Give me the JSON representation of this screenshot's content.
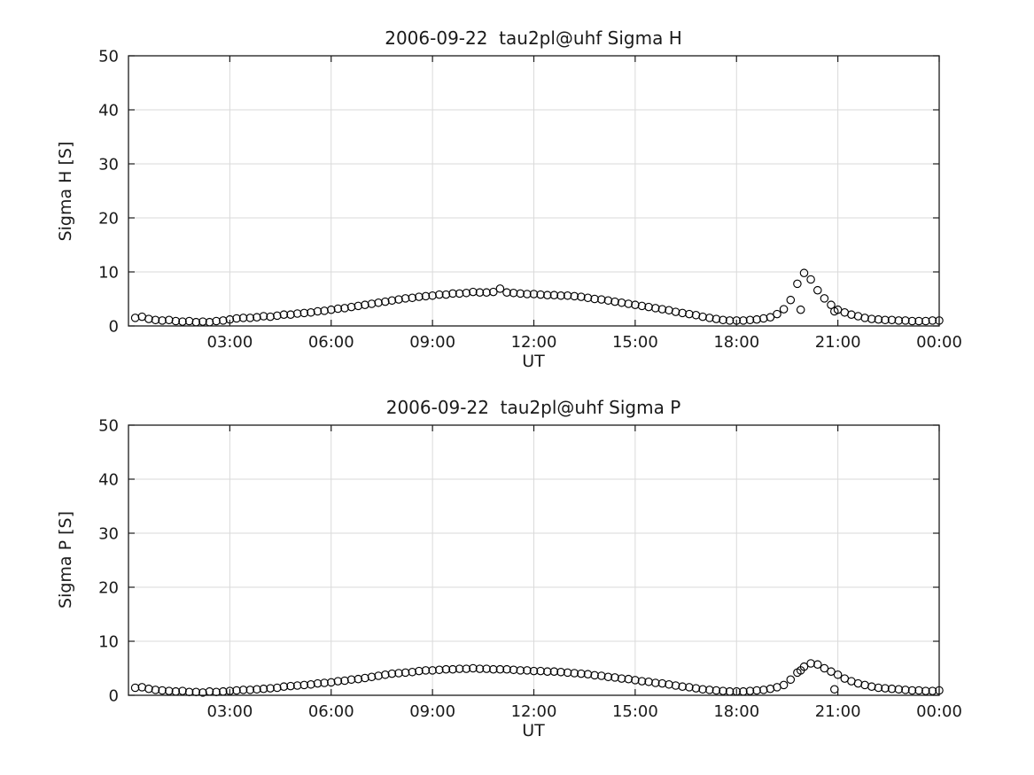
{
  "figure": {
    "background": "#ffffff",
    "marker_color": "#000000",
    "grid_color": "#dadada"
  },
  "chart_data": {
    "type": "scatter",
    "marker": "open-circle",
    "grid": true,
    "x_label": "UT",
    "x_lim": [
      0,
      24
    ],
    "y_lim": [
      0,
      50
    ],
    "x_ticks": [
      3,
      6,
      9,
      12,
      15,
      18,
      21,
      24
    ],
    "x_tick_labels": [
      "03:00",
      "06:00",
      "09:00",
      "12:00",
      "15:00",
      "18:00",
      "21:00",
      "00:00"
    ],
    "y_ticks": [
      0,
      10,
      20,
      30,
      40,
      50
    ],
    "x_hours": [
      0.2,
      0.4,
      0.6,
      0.8,
      1,
      1.2,
      1.4,
      1.6,
      1.8,
      2,
      2.2,
      2.4,
      2.6,
      2.8,
      3,
      3.2,
      3.4,
      3.6,
      3.8,
      4,
      4.2,
      4.4,
      4.6,
      4.8,
      5,
      5.2,
      5.4,
      5.6,
      5.8,
      6,
      6.2,
      6.4,
      6.6,
      6.8,
      7,
      7.2,
      7.4,
      7.6,
      7.8,
      8,
      8.2,
      8.4,
      8.6,
      8.8,
      9,
      9.2,
      9.4,
      9.6,
      9.8,
      10,
      10.2,
      10.4,
      10.6,
      10.8,
      11,
      11.2,
      11.4,
      11.6,
      11.8,
      12,
      12.2,
      12.4,
      12.6,
      12.8,
      13,
      13.2,
      13.4,
      13.6,
      13.8,
      14,
      14.2,
      14.4,
      14.6,
      14.8,
      15,
      15.2,
      15.4,
      15.6,
      15.8,
      16,
      16.2,
      16.4,
      16.6,
      16.8,
      17,
      17.2,
      17.4,
      17.6,
      17.8,
      18,
      18.2,
      18.4,
      18.6,
      18.8,
      19,
      19.2,
      19.4,
      19.6,
      19.8,
      20,
      20.2,
      20.4,
      20.6,
      20.8,
      21,
      21.2,
      21.4,
      21.6,
      21.8,
      22,
      22.2,
      22.4,
      22.6,
      22.8,
      23,
      23.2,
      23.4,
      23.6,
      23.8,
      24,
      19.9,
      20.9
    ],
    "subplots": [
      {
        "title": "2006-09-22  tau2pl@uhf Sigma H",
        "ylabel": "Sigma H [S]",
        "values": [
          1.5,
          1.7,
          1.3,
          1.1,
          1.0,
          1.1,
          0.9,
          0.8,
          0.9,
          0.7,
          0.8,
          0.7,
          0.9,
          1.0,
          1.2,
          1.4,
          1.5,
          1.5,
          1.6,
          1.8,
          1.7,
          1.9,
          2.1,
          2.1,
          2.3,
          2.4,
          2.5,
          2.7,
          2.8,
          3.0,
          3.2,
          3.3,
          3.5,
          3.7,
          3.9,
          4.1,
          4.3,
          4.5,
          4.7,
          4.9,
          5.1,
          5.2,
          5.4,
          5.5,
          5.6,
          5.8,
          5.8,
          6.0,
          6.0,
          6.1,
          6.3,
          6.2,
          6.2,
          6.3,
          6.9,
          6.2,
          6.1,
          6.0,
          5.9,
          5.9,
          5.8,
          5.7,
          5.7,
          5.6,
          5.6,
          5.5,
          5.4,
          5.2,
          5.0,
          4.9,
          4.7,
          4.5,
          4.3,
          4.1,
          3.9,
          3.7,
          3.5,
          3.3,
          3.1,
          2.9,
          2.6,
          2.4,
          2.2,
          2.0,
          1.7,
          1.5,
          1.3,
          1.1,
          1.0,
          1.0,
          1.0,
          1.1,
          1.2,
          1.4,
          1.6,
          2.2,
          3.1,
          4.8,
          7.8,
          9.8,
          8.6,
          6.6,
          5.1,
          3.9,
          3.0,
          2.5,
          2.1,
          1.8,
          1.5,
          1.3,
          1.2,
          1.1,
          1.1,
          1.0,
          1.0,
          0.9,
          0.9,
          0.9,
          1.0,
          1.0,
          3.0,
          2.7
        ]
      },
      {
        "title": "2006-09-22  tau2pl@uhf Sigma P",
        "ylabel": "Sigma P [S]",
        "values": [
          1.4,
          1.5,
          1.2,
          1.0,
          0.9,
          0.8,
          0.7,
          0.8,
          0.6,
          0.6,
          0.5,
          0.7,
          0.6,
          0.7,
          0.8,
          0.9,
          1.0,
          1.0,
          1.1,
          1.2,
          1.3,
          1.4,
          1.6,
          1.7,
          1.8,
          1.9,
          2.0,
          2.2,
          2.3,
          2.4,
          2.6,
          2.7,
          2.9,
          3.0,
          3.2,
          3.4,
          3.6,
          3.8,
          4.0,
          4.1,
          4.2,
          4.3,
          4.5,
          4.6,
          4.6,
          4.7,
          4.8,
          4.8,
          4.9,
          4.9,
          5.0,
          4.9,
          4.9,
          4.8,
          4.8,
          4.8,
          4.7,
          4.6,
          4.6,
          4.5,
          4.5,
          4.4,
          4.4,
          4.3,
          4.2,
          4.1,
          4.0,
          3.9,
          3.7,
          3.6,
          3.4,
          3.3,
          3.1,
          3.0,
          2.8,
          2.6,
          2.5,
          2.3,
          2.2,
          2.0,
          1.8,
          1.6,
          1.5,
          1.3,
          1.1,
          1.0,
          0.9,
          0.8,
          0.7,
          0.7,
          0.7,
          0.8,
          0.9,
          1.0,
          1.2,
          1.5,
          1.9,
          2.9,
          4.2,
          5.3,
          5.9,
          5.7,
          5.0,
          4.4,
          3.8,
          3.1,
          2.6,
          2.2,
          1.9,
          1.6,
          1.4,
          1.3,
          1.2,
          1.1,
          1.0,
          0.9,
          0.9,
          0.8,
          0.8,
          0.9,
          4.6,
          1.1
        ]
      }
    ]
  }
}
